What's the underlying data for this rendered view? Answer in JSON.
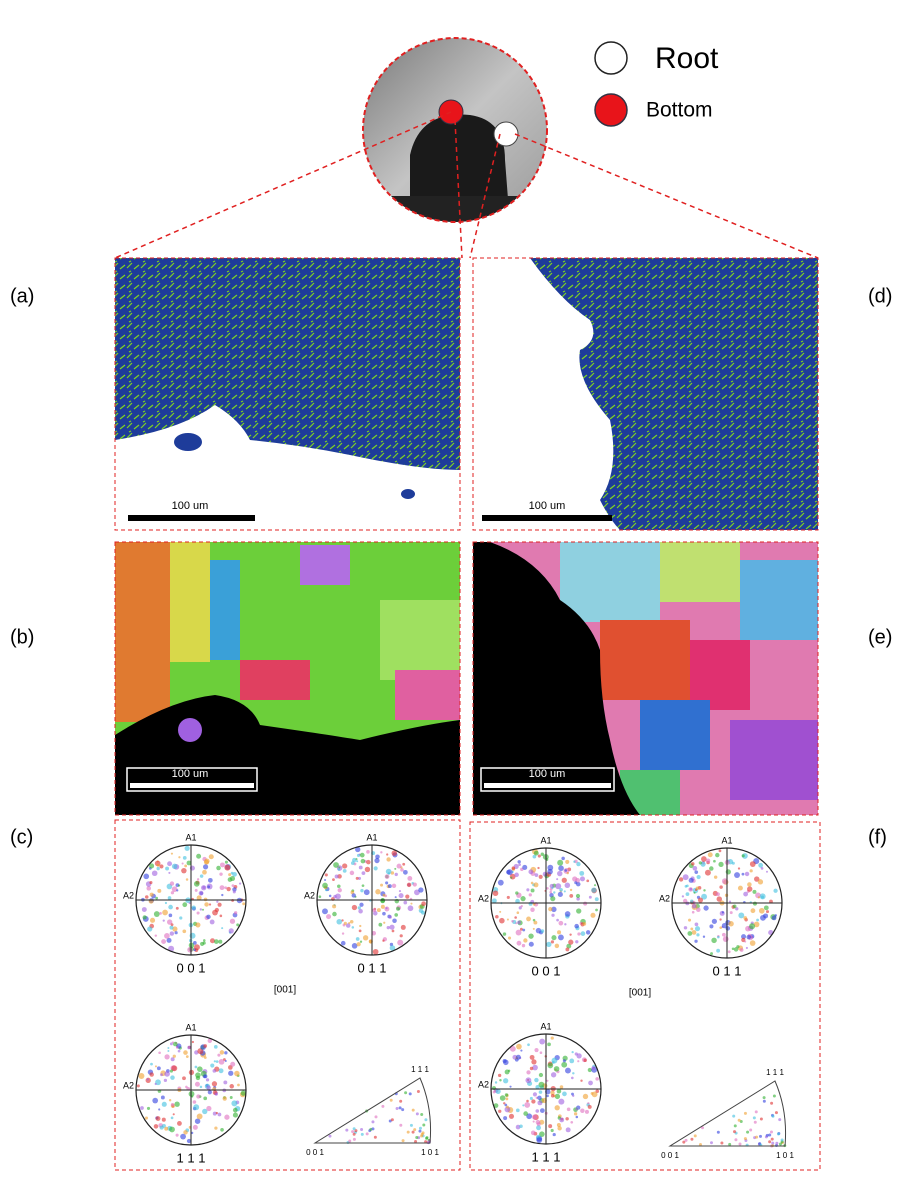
{
  "legend": {
    "root": "Root",
    "bottom": "Bottom"
  },
  "panels": [
    {
      "label": "(a)",
      "scale_bar": "100 um"
    },
    {
      "label": "(b)",
      "scale_bar": "100 um"
    },
    {
      "label": "(c)"
    },
    {
      "label": "(d)",
      "scale_bar": "100 um"
    },
    {
      "label": "(e)",
      "scale_bar": "100 um"
    },
    {
      "label": "(f)"
    }
  ],
  "pole_figures": {
    "axis_top": "A1",
    "axis_left": "A2",
    "figures": [
      "0 0 1",
      "0 1 1",
      "1 1 1"
    ],
    "ipf_title": "[001]",
    "ipf_corners": [
      "0 0 1",
      "1 0 1",
      "1 1 1"
    ]
  }
}
